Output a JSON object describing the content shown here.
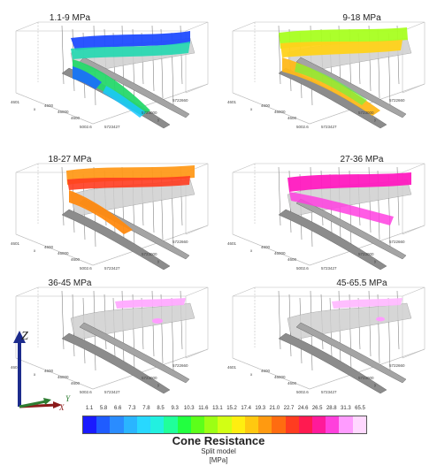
{
  "panels": [
    {
      "title": "1.1-9 MPa"
    },
    {
      "title": "9-18 MPa"
    },
    {
      "title": "18-27 MPa"
    },
    {
      "title": "27-36 MPa"
    },
    {
      "title": "36-45 MPa"
    },
    {
      "title": "45-65.5 MPa"
    }
  ],
  "axis_ticks": {
    "a": "4601",
    "b": "x",
    "c": "4600",
    "d": "46000",
    "e": "4600",
    "f": "5002.6",
    "g": "5723427",
    "h": "5723000",
    "i": "5722660",
    "j": "y"
  },
  "triad": {
    "z": "Z",
    "x": "X",
    "y": "Y"
  },
  "legend": {
    "title": "Cone Resistance",
    "subtitle": "Split model",
    "unit": "[MPa]",
    "scale": [
      "1.1",
      "5.8",
      "6.6",
      "7.3",
      "7.8",
      "8.5",
      "9.3",
      "10.3",
      "11.6",
      "13.1",
      "15.2",
      "17.4",
      "19.3",
      "21.0",
      "22.7",
      "24.6",
      "26.5",
      "28.8",
      "31.3",
      "65.5"
    ],
    "colors": [
      "#1a1aff",
      "#1f5cff",
      "#2a8cff",
      "#2ab5ff",
      "#28d8ff",
      "#22f0e0",
      "#20ff9a",
      "#22ff40",
      "#5cff1a",
      "#9cff14",
      "#d2ff14",
      "#ffee10",
      "#ffc810",
      "#ff9a10",
      "#ff6c10",
      "#ff3c20",
      "#ff1a50",
      "#ff1a9a",
      "#ff40dc",
      "#ff9cff",
      "#ffd8ff"
    ]
  }
}
